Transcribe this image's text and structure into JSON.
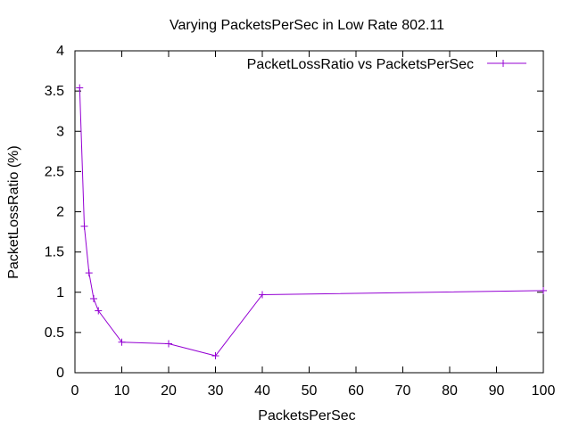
{
  "chart_data": {
    "type": "line",
    "title": "Varying PacketsPerSec in Low Rate 802.11",
    "xlabel": "PacketsPerSec",
    "ylabel": "PacketLossRatio (%)",
    "xlim": [
      0,
      100
    ],
    "ylim": [
      0,
      4
    ],
    "xticks": [
      0,
      10,
      20,
      30,
      40,
      50,
      60,
      70,
      80,
      90,
      100
    ],
    "yticks": [
      0,
      0.5,
      1,
      1.5,
      2,
      2.5,
      3,
      3.5,
      4
    ],
    "xtick_labels": [
      "0",
      "10",
      "20",
      "30",
      "40",
      "50",
      "60",
      "70",
      "80",
      "90",
      "100"
    ],
    "ytick_labels": [
      "0",
      "0.5",
      "1",
      "1.5",
      "2",
      "2.5",
      "3",
      "3.5",
      "4"
    ],
    "grid": false,
    "legend_position": "top-right",
    "series": [
      {
        "name": "PacketLossRatio vs PacketsPerSec",
        "color": "#9400d3",
        "marker": "plus",
        "x": [
          1,
          2,
          3,
          4,
          5,
          10,
          20,
          30,
          40,
          100
        ],
        "y": [
          3.54,
          1.82,
          1.24,
          0.92,
          0.77,
          0.38,
          0.36,
          0.21,
          0.97,
          1.02
        ]
      }
    ]
  }
}
